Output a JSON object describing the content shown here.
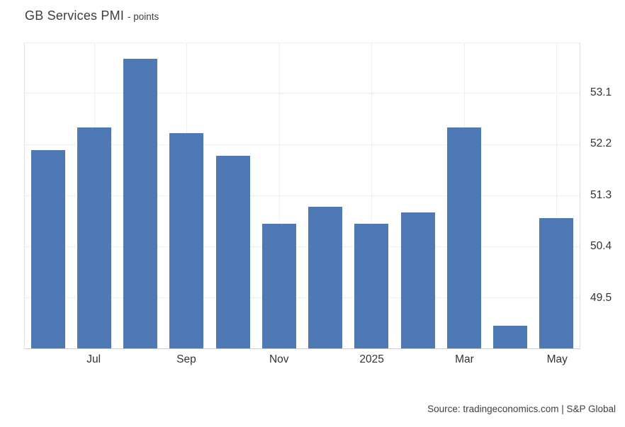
{
  "header": {
    "title": "GB Services PMI",
    "subtitle": "- points"
  },
  "footer": {
    "source": "Source: tradingeconomics.com | S&P Global"
  },
  "chart_data": {
    "type": "bar",
    "title": "GB Services PMI",
    "subtitle": "- points",
    "categories": [
      "",
      "Jul",
      "",
      "Sep",
      "",
      "Nov",
      "",
      "2025",
      "",
      "Mar",
      "",
      "May"
    ],
    "values": [
      52.1,
      52.5,
      53.7,
      52.4,
      52.0,
      50.8,
      51.1,
      50.8,
      51.0,
      52.5,
      49.0,
      50.9
    ],
    "y_ticks": [
      53.1,
      52.2,
      51.3,
      50.4,
      49.5
    ],
    "ylim": [
      48.6,
      53.98
    ],
    "ylabel": "points",
    "xlabel": "",
    "grid": true,
    "legend": false,
    "bar_color": "#4e79b5",
    "source": "Source: tradingeconomics.com | S&P Global"
  }
}
